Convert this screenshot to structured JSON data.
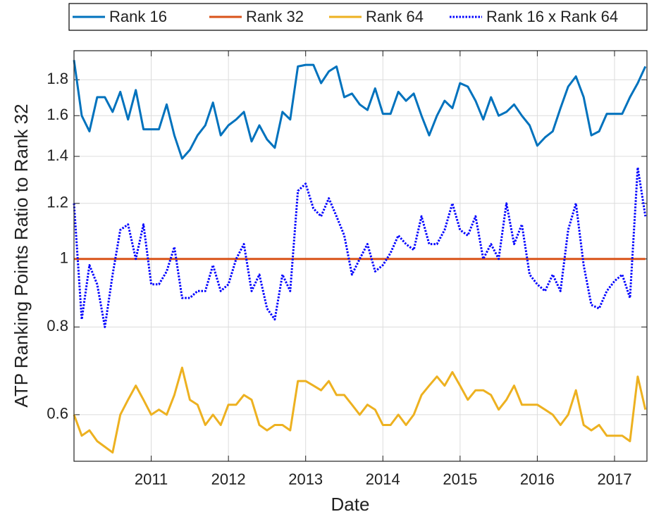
{
  "chart_data": {
    "type": "line",
    "x_label": "Date",
    "y_label": "ATP Ranking Points Ratio to Rank 32",
    "yscale": "log",
    "grid": true,
    "legend": "top",
    "xlim": [
      2010.0,
      2017.42
    ],
    "xticks": [
      2011,
      2012,
      2013,
      2014,
      2015,
      2016,
      2017
    ],
    "ylim": [
      0.515,
      1.98
    ],
    "yticks": [
      0.6,
      0.8,
      1,
      1.2,
      1.4,
      1.6,
      1.8
    ],
    "x": [
      2010.0,
      2010.1,
      2010.2,
      2010.3,
      2010.4,
      2010.5,
      2010.6,
      2010.7,
      2010.8,
      2010.9,
      2011.0,
      2011.1,
      2011.2,
      2011.3,
      2011.4,
      2011.5,
      2011.6,
      2011.7,
      2011.8,
      2011.9,
      2012.0,
      2012.1,
      2012.2,
      2012.3,
      2012.4,
      2012.5,
      2012.6,
      2012.7,
      2012.8,
      2012.9,
      2013.0,
      2013.1,
      2013.2,
      2013.3,
      2013.4,
      2013.5,
      2013.6,
      2013.7,
      2013.8,
      2013.9,
      2014.0,
      2014.1,
      2014.2,
      2014.3,
      2014.4,
      2014.5,
      2014.6,
      2014.7,
      2014.8,
      2014.9,
      2015.0,
      2015.1,
      2015.2,
      2015.3,
      2015.4,
      2015.5,
      2015.6,
      2015.7,
      2015.8,
      2015.9,
      2016.0,
      2016.1,
      2016.2,
      2016.3,
      2016.4,
      2016.5,
      2016.6,
      2016.7,
      2016.8,
      2016.9,
      2017.0,
      2017.1,
      2017.2,
      2017.3,
      2017.4
    ],
    "series": [
      {
        "name": "Rank 16",
        "color": "#0072BD",
        "linestyle": "solid",
        "values": [
          1.92,
          1.6,
          1.52,
          1.7,
          1.7,
          1.62,
          1.73,
          1.58,
          1.74,
          1.53,
          1.53,
          1.53,
          1.66,
          1.5,
          1.39,
          1.43,
          1.5,
          1.55,
          1.67,
          1.5,
          1.55,
          1.58,
          1.62,
          1.47,
          1.55,
          1.48,
          1.44,
          1.62,
          1.58,
          1.88,
          1.89,
          1.89,
          1.78,
          1.85,
          1.88,
          1.7,
          1.72,
          1.66,
          1.63,
          1.75,
          1.61,
          1.61,
          1.73,
          1.68,
          1.72,
          1.6,
          1.5,
          1.6,
          1.68,
          1.64,
          1.78,
          1.76,
          1.68,
          1.58,
          1.7,
          1.6,
          1.62,
          1.66,
          1.6,
          1.55,
          1.45,
          1.49,
          1.52,
          1.64,
          1.76,
          1.82,
          1.7,
          1.5,
          1.52,
          1.61,
          1.61,
          1.61,
          1.7,
          1.78,
          1.88
        ]
      },
      {
        "name": "Rank 32",
        "color": "#D95319",
        "linestyle": "solid",
        "values": [
          1,
          1,
          1,
          1,
          1,
          1,
          1,
          1,
          1,
          1,
          1,
          1,
          1,
          1,
          1,
          1,
          1,
          1,
          1,
          1,
          1,
          1,
          1,
          1,
          1,
          1,
          1,
          1,
          1,
          1,
          1,
          1,
          1,
          1,
          1,
          1,
          1,
          1,
          1,
          1,
          1,
          1,
          1,
          1,
          1,
          1,
          1,
          1,
          1,
          1,
          1,
          1,
          1,
          1,
          1,
          1,
          1,
          1,
          1,
          1,
          1,
          1,
          1,
          1,
          1,
          1,
          1,
          1,
          1,
          1,
          1,
          1,
          1,
          1,
          1
        ]
      },
      {
        "name": "Rank 64",
        "color": "#EDB120",
        "linestyle": "solid",
        "values": [
          0.6,
          0.56,
          0.57,
          0.55,
          0.54,
          0.53,
          0.6,
          0.63,
          0.66,
          0.63,
          0.6,
          0.61,
          0.6,
          0.64,
          0.7,
          0.63,
          0.62,
          0.58,
          0.6,
          0.58,
          0.62,
          0.62,
          0.64,
          0.63,
          0.58,
          0.57,
          0.58,
          0.58,
          0.57,
          0.67,
          0.67,
          0.66,
          0.65,
          0.67,
          0.64,
          0.64,
          0.62,
          0.6,
          0.62,
          0.61,
          0.58,
          0.58,
          0.6,
          0.58,
          0.6,
          0.64,
          0.66,
          0.68,
          0.66,
          0.69,
          0.66,
          0.63,
          0.65,
          0.65,
          0.64,
          0.61,
          0.63,
          0.66,
          0.62,
          0.62,
          0.62,
          0.61,
          0.6,
          0.58,
          0.6,
          0.65,
          0.58,
          0.57,
          0.58,
          0.56,
          0.56,
          0.56,
          0.55,
          0.68,
          0.61
        ]
      },
      {
        "name": "Rank 16 x Rank 64",
        "color": "#0000FF",
        "linestyle": "dotted",
        "values": [
          1.2,
          0.82,
          0.98,
          0.92,
          0.8,
          0.95,
          1.1,
          1.12,
          1.0,
          1.12,
          0.92,
          0.92,
          0.96,
          1.04,
          0.88,
          0.88,
          0.9,
          0.9,
          0.98,
          0.9,
          0.92,
          1.0,
          1.05,
          0.9,
          0.95,
          0.85,
          0.82,
          0.95,
          0.9,
          1.25,
          1.28,
          1.18,
          1.15,
          1.22,
          1.15,
          1.08,
          0.95,
          1.0,
          1.05,
          0.96,
          0.98,
          1.02,
          1.08,
          1.05,
          1.03,
          1.15,
          1.05,
          1.05,
          1.1,
          1.2,
          1.1,
          1.08,
          1.15,
          1.0,
          1.05,
          1.0,
          1.2,
          1.05,
          1.12,
          0.95,
          0.92,
          0.9,
          0.95,
          0.9,
          1.1,
          1.2,
          0.98,
          0.86,
          0.85,
          0.9,
          0.93,
          0.95,
          0.88,
          1.35,
          1.15
        ]
      }
    ]
  }
}
